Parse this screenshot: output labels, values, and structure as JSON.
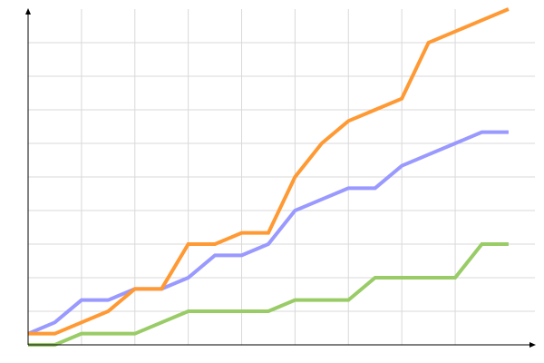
{
  "chart_data": {
    "type": "line",
    "title": "",
    "xlabel": "",
    "ylabel": "",
    "x": [
      0,
      1,
      2,
      3,
      4,
      5,
      6,
      7,
      8,
      9,
      10,
      11,
      12,
      13,
      14,
      15,
      16,
      17,
      18
    ],
    "xlim": [
      0,
      19
    ],
    "ylim": [
      0,
      30
    ],
    "grid": true,
    "x_grid_step": 2,
    "y_grid_step": 3,
    "tick_labels_shown": false,
    "legend": "none",
    "series": [
      {
        "color": "#9999ff",
        "values": [
          1,
          2,
          4,
          4,
          5,
          5,
          6,
          8,
          8,
          9,
          12,
          13,
          14,
          14,
          16,
          17,
          18,
          19,
          19
        ]
      },
      {
        "color": "#ff9933",
        "values": [
          1,
          1,
          2,
          3,
          5,
          5,
          9,
          9,
          10,
          10,
          15,
          18,
          20,
          21,
          22,
          27,
          28,
          29,
          30
        ]
      },
      {
        "color": "#99cc66",
        "values": [
          0,
          0,
          1,
          1,
          1,
          2,
          3,
          3,
          3,
          3,
          4,
          4,
          4,
          6,
          6,
          6,
          6,
          9,
          9
        ]
      }
    ]
  }
}
